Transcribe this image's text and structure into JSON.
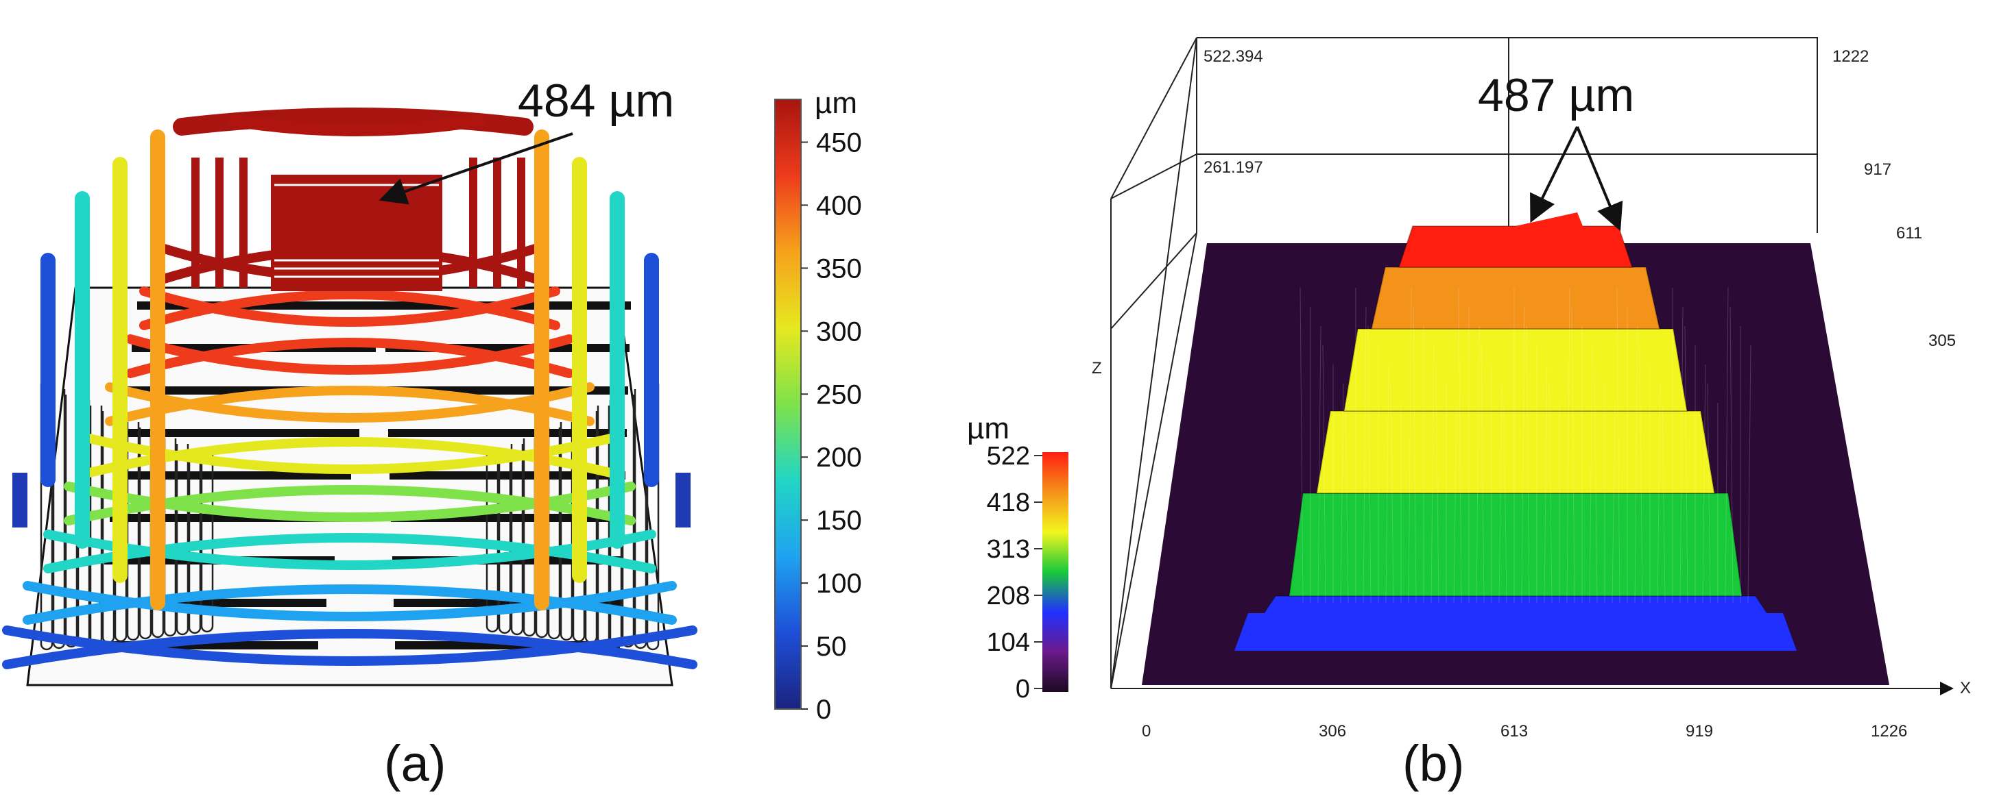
{
  "panel_a": {
    "caption": "(a)",
    "annotation": "484 µm",
    "colorbar": {
      "unit": "µm",
      "ticks": [
        "0",
        "50",
        "100",
        "150",
        "200",
        "250",
        "300",
        "350",
        "400",
        "450"
      ],
      "max": 484,
      "colors": [
        "#1a237e",
        "#1e4fd8",
        "#1fa2f0",
        "#21d6c4",
        "#7fe24a",
        "#e6e81f",
        "#f7a21c",
        "#ee3b1c",
        "#a8140f"
      ]
    }
  },
  "panel_b": {
    "caption": "(b)",
    "annotation": "487 µm",
    "colorbar": {
      "unit": "µm",
      "ticks": [
        "0",
        "104",
        "208",
        "313",
        "418",
        "522"
      ],
      "colors": [
        "#1b0a22",
        "#6b1a8a",
        "#2030ff",
        "#18c93a",
        "#f3f51e",
        "#f4931a",
        "#ff1e10"
      ]
    },
    "axes": {
      "x_label": "X",
      "z_label": "Z",
      "x_ticks": [
        "0",
        "306",
        "613",
        "919",
        "1226"
      ],
      "y_ticks": [
        "1222",
        "917",
        "611",
        "305"
      ],
      "z_ticks": [
        "522.394",
        "261.197"
      ]
    }
  }
}
